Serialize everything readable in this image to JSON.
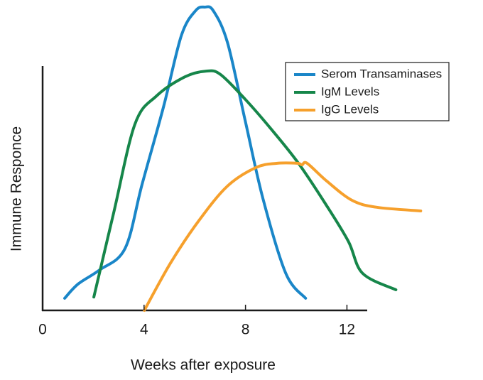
{
  "chart_data": {
    "type": "line",
    "x_label": "Weeks after exposure",
    "y_label": "Immune Responce",
    "xlim": [
      0,
      12.8
    ],
    "xticks": [
      0,
      4,
      8,
      12
    ],
    "ylim": [
      0,
      100
    ],
    "legend": "top-right",
    "series": [
      {
        "name": "Serom Transaminases",
        "color": "#1a86c8",
        "x": [
          0.87,
          1.4,
          2.24,
          3.25,
          3.92,
          4.77,
          5.47,
          6.03,
          6.39,
          6.73,
          7.29,
          7.99,
          8.69,
          9.59,
          10.37
        ],
        "values": [
          4,
          8.7,
          13.3,
          20.4,
          41.5,
          67.2,
          90.6,
          98.8,
          100,
          98.8,
          88.3,
          62.5,
          36.8,
          12.2,
          4
        ]
      },
      {
        "name": "IgM Levels",
        "color": "#16864a",
        "x": [
          2.02,
          2.8,
          3.64,
          4.49,
          5.61,
          6.45,
          7.01,
          7.99,
          8.97,
          10.09,
          11.21,
          12.06,
          12.62,
          13.93
        ],
        "values": [
          4.4,
          32.1,
          61.4,
          70.7,
          77,
          78.9,
          77.8,
          69.6,
          60.2,
          48.5,
          34.4,
          22.7,
          12.2,
          6.8
        ]
      },
      {
        "name": "IgG Levels",
        "color": "#f6a02c",
        "x": [
          4.01,
          5.05,
          6.17,
          7.29,
          8.41,
          9.25,
          10.04,
          10.23,
          10.43,
          11.21,
          12.2,
          13.18,
          14.91
        ],
        "values": [
          0,
          15.7,
          29.7,
          41,
          47.1,
          48.5,
          48.5,
          48,
          48.5,
          42.6,
          36.3,
          34,
          32.8
        ]
      }
    ]
  }
}
